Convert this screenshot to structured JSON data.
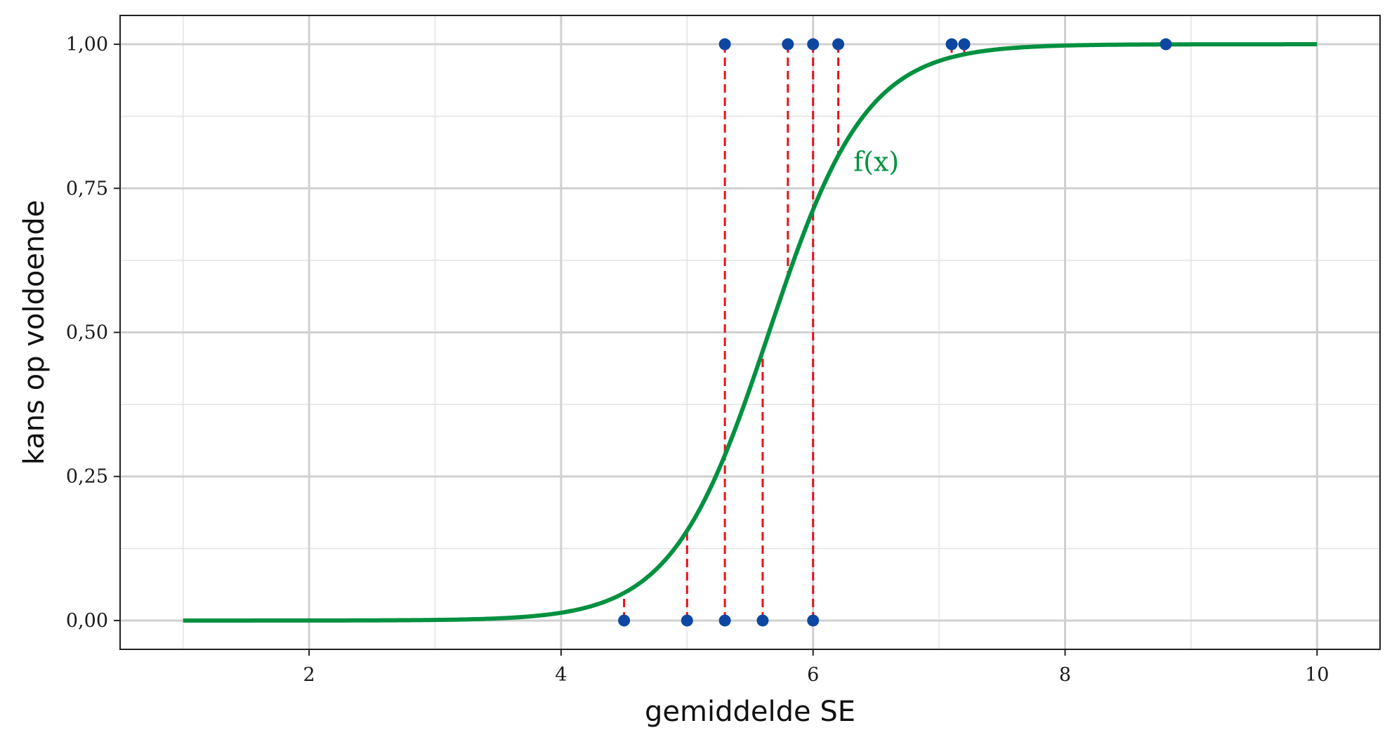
{
  "chart_data": {
    "type": "scatter",
    "xlabel": "gemiddelde SE",
    "ylabel": "kans op voldoende",
    "xlim": [
      0.5,
      10.5
    ],
    "ylim": [
      -0.05,
      1.05
    ],
    "x_ticks": [
      2,
      4,
      6,
      8,
      10
    ],
    "x_tick_labels": [
      "2",
      "4",
      "6",
      "8",
      "10"
    ],
    "x_minor_ticks": [
      1,
      3,
      5,
      7,
      9
    ],
    "y_ticks": [
      0,
      0.25,
      0.5,
      0.75,
      1.0
    ],
    "y_tick_labels": [
      "0,00",
      "0,25",
      "0,50",
      "0,75",
      "1,00"
    ],
    "y_minor_ticks": [
      0.125,
      0.375,
      0.625,
      0.875
    ],
    "grid": true,
    "points": [
      {
        "x": 4.5,
        "y": 0
      },
      {
        "x": 5.0,
        "y": 0
      },
      {
        "x": 5.3,
        "y": 0
      },
      {
        "x": 5.6,
        "y": 0
      },
      {
        "x": 6.0,
        "y": 0
      },
      {
        "x": 5.3,
        "y": 1
      },
      {
        "x": 5.8,
        "y": 1
      },
      {
        "x": 6.0,
        "y": 1
      },
      {
        "x": 6.2,
        "y": 1
      },
      {
        "x": 7.1,
        "y": 1
      },
      {
        "x": 7.2,
        "y": 1
      },
      {
        "x": 8.8,
        "y": 1
      }
    ],
    "curve": {
      "label": "f(x)",
      "function": "logistic",
      "midpoint": 5.65,
      "slope": 2.6,
      "x_range": [
        1,
        10
      ]
    },
    "colors": {
      "curve": "#009140",
      "points": "#0d47a1",
      "residual_lines": "#e8111a",
      "grid_major": "#d0d0d0",
      "grid_minor": "#e3e3e3",
      "axis": "#222222"
    }
  }
}
